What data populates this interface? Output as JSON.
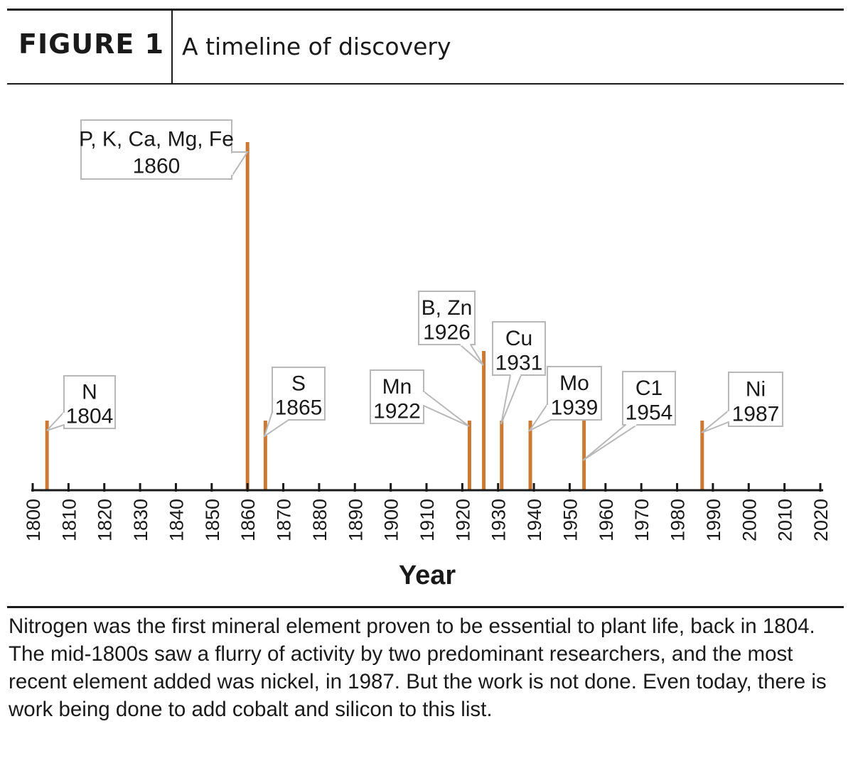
{
  "header": {
    "figure_label": "FIGURE 1",
    "title": "A timeline of discovery"
  },
  "chart_data": {
    "type": "bar",
    "xlabel": "Year",
    "xlim": [
      1800,
      2020
    ],
    "x_ticks": [
      "1800",
      "1810",
      "1820",
      "1830",
      "1840",
      "1850",
      "1860",
      "1870",
      "1880",
      "1890",
      "1900",
      "1910",
      "1920",
      "1930",
      "1940",
      "1950",
      "1960",
      "1970",
      "1980",
      "1990",
      "2000",
      "2010",
      "2020"
    ],
    "bar_color": "#cc7a33",
    "events": [
      {
        "year": 1804,
        "height": 1,
        "elements": "N",
        "year_label": "1804"
      },
      {
        "year": 1860,
        "height": 5,
        "elements": "P, K, Ca, Mg, Fe",
        "year_label": "1860"
      },
      {
        "year": 1865,
        "height": 1,
        "elements": "S",
        "year_label": "1865"
      },
      {
        "year": 1922,
        "height": 1,
        "elements": "Mn",
        "year_label": "1922"
      },
      {
        "year": 1926,
        "height": 2,
        "elements": "B, Zn",
        "year_label": "1926"
      },
      {
        "year": 1931,
        "height": 1,
        "elements": "Cu",
        "year_label": "1931"
      },
      {
        "year": 1939,
        "height": 1,
        "elements": "Mo",
        "year_label": "1939"
      },
      {
        "year": 1954,
        "height": 1,
        "elements": "C1",
        "year_label": "1954"
      },
      {
        "year": 1987,
        "height": 1,
        "elements": "Ni",
        "year_label": "1987"
      }
    ]
  },
  "caption": "Nitrogen was the first mineral element proven to be essential to plant life, back in 1804. The mid-1800s saw a flurry of activity by two predominant researchers, and the most recent element added was nickel, in 1987. But the work is not done. Even today, there is work being done to add cobalt and silicon to this list."
}
